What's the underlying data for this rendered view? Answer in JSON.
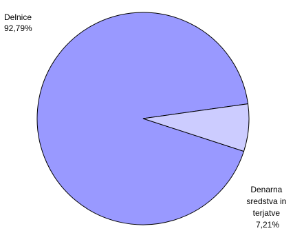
{
  "chart_data": {
    "type": "pie",
    "slices": [
      {
        "label_lines": [
          "Delnice",
          "92,79%"
        ],
        "value": 92.79,
        "color": "#9999ff"
      },
      {
        "label_lines": [
          "Denarna",
          "sredstva in",
          "terjatve",
          "7,21%"
        ],
        "value": 7.21,
        "color": "#ccccff"
      }
    ],
    "start_angle_deg": -8,
    "direction": "counterclockwise",
    "outline_color": "#000000",
    "legend": "none"
  }
}
